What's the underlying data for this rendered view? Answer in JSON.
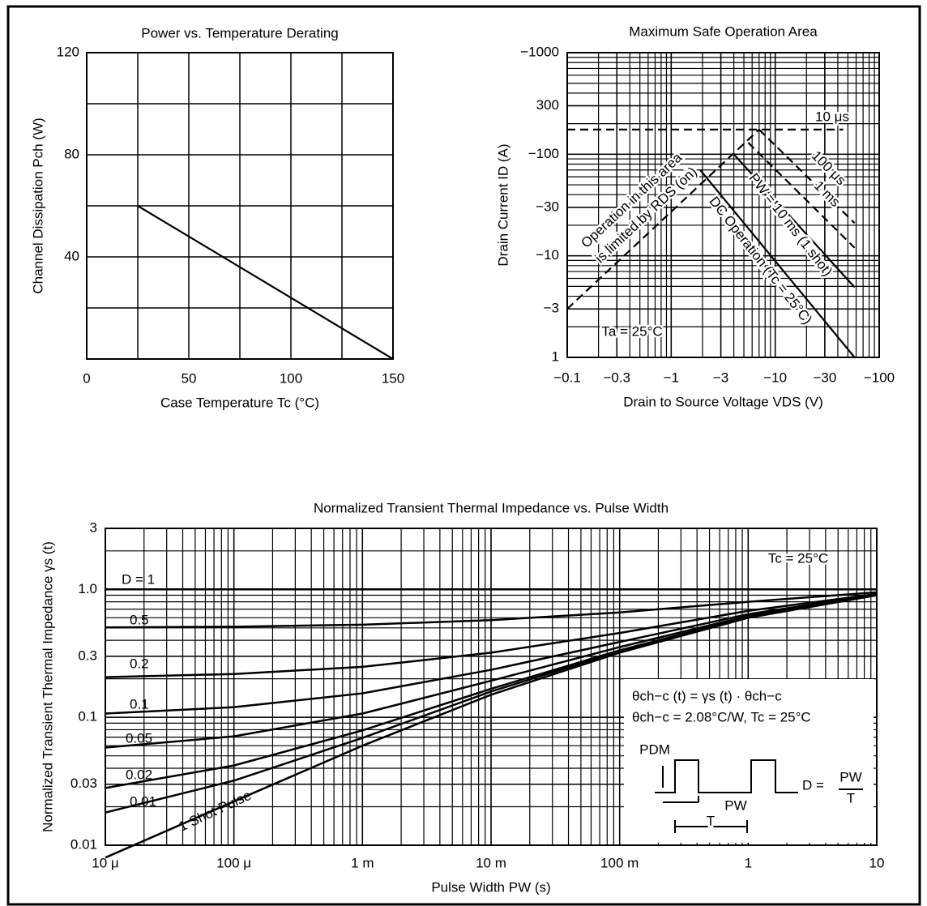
{
  "chart_data": [
    {
      "type": "line",
      "title": "Power vs. Temperature Derating",
      "xlabel": "Case Temperature Tc (°C)",
      "ylabel": "Channel Dissipation Pch (W)",
      "xlim": [
        0,
        150
      ],
      "ylim": [
        0,
        120
      ],
      "xticks": [
        0,
        50,
        100,
        150
      ],
      "yticks": [
        40,
        80,
        120
      ],
      "xminor": [
        25,
        75,
        125
      ],
      "yminor": [
        20,
        60,
        100
      ],
      "grid": true,
      "log": false,
      "series": [
        {
          "x": [
            25,
            150
          ],
          "values": [
            60,
            0
          ],
          "color": "#000000"
        }
      ]
    },
    {
      "type": "line",
      "title": "Maximum Safe Operation Area",
      "xlabel": "Drain to Source Voltage VDS (V)",
      "ylabel": "Drain Current ID (A)",
      "xlim": [
        0.1,
        100
      ],
      "ylim": [
        1,
        1000
      ],
      "xticks": [
        {
          "value": 0.1,
          "label": "−0.1"
        },
        {
          "value": 0.3,
          "label": "−0.3"
        },
        {
          "value": 1,
          "label": "−1"
        },
        {
          "value": 3,
          "label": "−3"
        },
        {
          "value": 10,
          "label": "−10"
        },
        {
          "value": 30,
          "label": "−30"
        },
        {
          "value": 100,
          "label": "−100"
        }
      ],
      "yticks": [
        1,
        {
          "value": 3,
          "label": "−3"
        },
        {
          "value": 10,
          "label": "−10"
        },
        {
          "value": 30,
          "label": "−30"
        },
        {
          "value": 100,
          "label": "−100"
        },
        300,
        {
          "value": 1000,
          "label": "−1000"
        }
      ],
      "grid": true,
      "log": true,
      "minor_grid": true,
      "series": [
        {
          "x": [
            0.1,
            7
          ],
          "values": [
            3,
            175
          ],
          "dashed": true,
          "color": "#000000"
        },
        {
          "x": [
            0.1,
            45
          ],
          "values": [
            175,
            175
          ],
          "dashed": true,
          "color": "#000000"
        },
        {
          "x": [
            7,
            58
          ],
          "values": [
            175,
            21
          ],
          "dashed": true,
          "color": "#000000"
        },
        {
          "x": [
            5.5,
            58
          ],
          "values": [
            130,
            12
          ],
          "dashed": true,
          "color": "#000000"
        },
        {
          "x": [
            4,
            58
          ],
          "values": [
            100,
            4.9
          ],
          "dashed": false,
          "color": "#000000"
        },
        {
          "x": [
            1.9,
            58
          ],
          "values": [
            70,
            1
          ],
          "dashed": false,
          "color": "#000000"
        }
      ],
      "annotations": [
        "10 μs",
        "100 μs",
        "1 ms",
        "PW = 10 ms (1 shot)",
        "DC Operation (Tc = 25°C)",
        "Operation in this area",
        "is limited by RDS (on)",
        "Ta = 25°C"
      ]
    },
    {
      "type": "line",
      "title": "Normalized Transient Thermal Impedance vs. Pulse Width",
      "xlabel": "Pulse Width PW (s)",
      "ylabel": "Normalized Transient Thermal Impedance γs (t)",
      "xlim": [
        1e-05,
        10
      ],
      "ylim": [
        0.01,
        3
      ],
      "xticks": [
        {
          "value": 1e-05,
          "label": "10 μ"
        },
        {
          "value": 0.0001,
          "label": "100 μ"
        },
        {
          "value": 0.001,
          "label": "1 m"
        },
        {
          "value": 0.01,
          "label": "10 m"
        },
        {
          "value": 0.1,
          "label": "100 m"
        },
        1,
        10
      ],
      "yticks": [
        0.01,
        0.03,
        0.1,
        0.3,
        {
          "value": 1,
          "label": "1.0"
        },
        3
      ],
      "grid": true,
      "log": true,
      "minor_grid": true,
      "x": [
        1e-05,
        0.0001,
        0.001,
        0.01,
        0.1,
        1,
        10
      ],
      "series": [
        {
          "name": "D = 1",
          "values": [
            1,
            1,
            1,
            1,
            1,
            1,
            1
          ],
          "color": "#000000"
        },
        {
          "name": "0.5",
          "values": [
            0.504,
            0.511,
            0.53,
            0.575,
            0.66,
            0.8,
            0.95
          ],
          "color": "#000000"
        },
        {
          "name": "0.2",
          "values": [
            0.206,
            0.218,
            0.248,
            0.32,
            0.456,
            0.68,
            0.92
          ],
          "color": "#000000"
        },
        {
          "name": "0.1",
          "values": [
            0.107,
            0.12,
            0.154,
            0.235,
            0.388,
            0.64,
            0.91
          ],
          "color": "#000000"
        },
        {
          "name": "0.05",
          "values": [
            0.058,
            0.071,
            0.107,
            0.193,
            0.354,
            0.62,
            0.905
          ],
          "color": "#000000"
        },
        {
          "name": "0.02",
          "values": [
            0.028,
            0.042,
            0.079,
            0.167,
            0.334,
            0.61,
            0.902
          ],
          "color": "#000000"
        },
        {
          "name": "0.01",
          "values": [
            0.018,
            0.032,
            0.069,
            0.159,
            0.327,
            0.604,
            0.901
          ],
          "color": "#000000"
        },
        {
          "name": "1 Shot Pulse",
          "values": [
            0.008,
            0.022,
            0.06,
            0.15,
            0.32,
            0.6,
            0.9
          ],
          "color": "#000000"
        }
      ],
      "annotations": [
        "Tc = 25°C",
        "θch−c (t) = γs (t) · θch−c",
        "θch−c = 2.08°C/W, Tc = 25°C",
        "PDM",
        "PW",
        "T",
        "D =",
        "PW",
        "T"
      ]
    }
  ]
}
